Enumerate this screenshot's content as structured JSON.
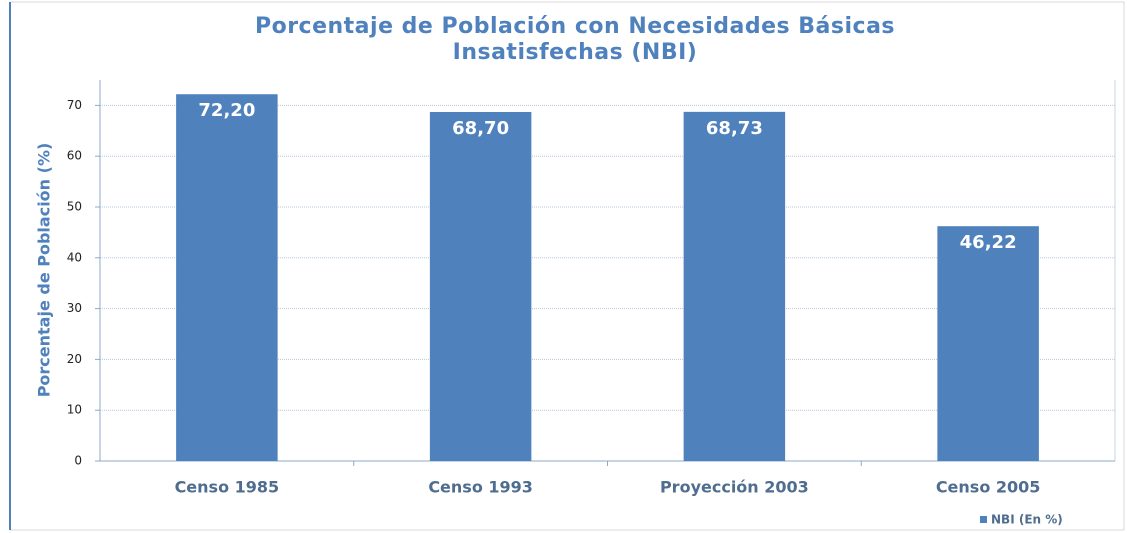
{
  "chart_data": {
    "type": "bar",
    "title": "Porcentaje de Población con Necesidades Básicas Insatisfechas (NBI)",
    "y_label": "Porcentaje de Población (%)",
    "categories": [
      "Censo 1985",
      "Censo 1993",
      "Proyección 2003",
      "Censo 2005"
    ],
    "series": [
      {
        "name": "NBI (En %)",
        "color": "#4f81bd",
        "values": [
          72.2,
          68.7,
          68.73,
          46.22
        ],
        "value_labels": [
          "72,20",
          "68,70",
          "68,73",
          "46,22"
        ]
      }
    ],
    "ylim": [
      0,
      75
    ],
    "yticks": [
      0,
      10,
      20,
      30,
      40,
      50,
      60,
      70
    ],
    "grid": true,
    "legend": "bottom-right"
  }
}
